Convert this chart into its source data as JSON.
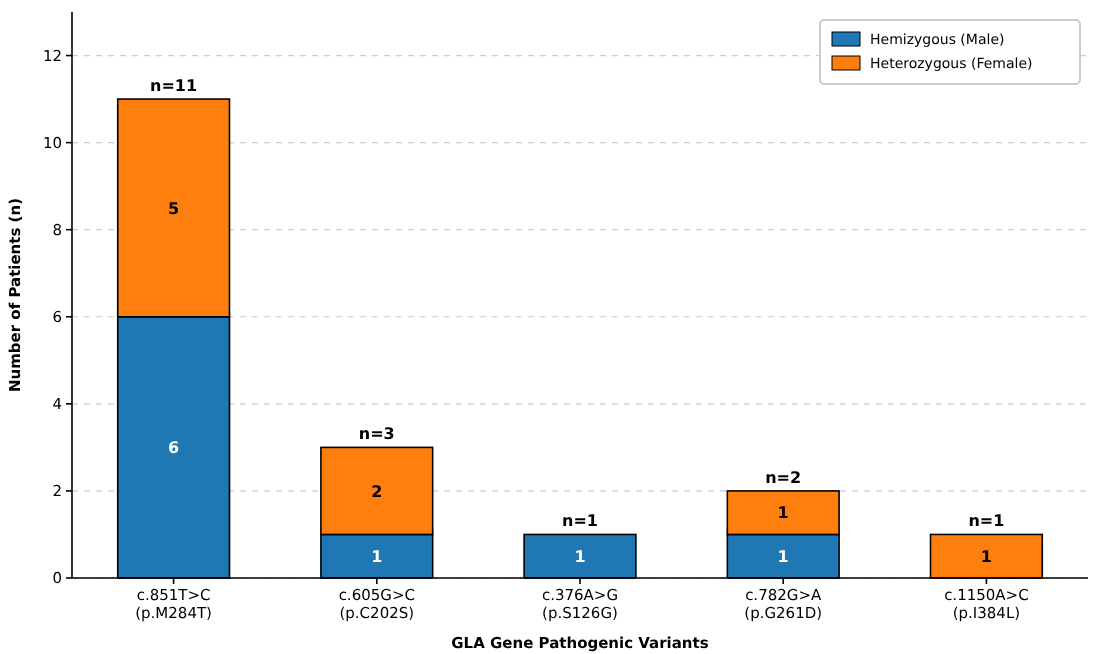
{
  "chart_data": {
    "type": "bar",
    "stacked": true,
    "categories": [
      "c.851T>C\n(p.M284T)",
      "c.605G>C\n(p.C202S)",
      "c.376A>G\n(p.S126G)",
      "c.782G>A\n(p.G261D)",
      "c.1150A>C\n(p.I384L)"
    ],
    "series": [
      {
        "name": "Hemizygous (Male)",
        "color": "#1f77b4",
        "values": [
          6,
          1,
          1,
          1,
          null
        ]
      },
      {
        "name": "Heterozygous (Female)",
        "color": "#ff7f0e",
        "values": [
          5,
          2,
          null,
          1,
          1
        ]
      }
    ],
    "totals": [
      "n=11",
      "n=3",
      "n=1",
      "n=2",
      "n=1"
    ],
    "data_labels": true,
    "xlabel": "GLA Gene Pathogenic Variants",
    "ylabel": "Number of Patients (n)",
    "ylim": [
      0,
      13
    ],
    "yticks": [
      0,
      2,
      4,
      6,
      8,
      10,
      12
    ],
    "grid": "y",
    "legend": "top right"
  }
}
